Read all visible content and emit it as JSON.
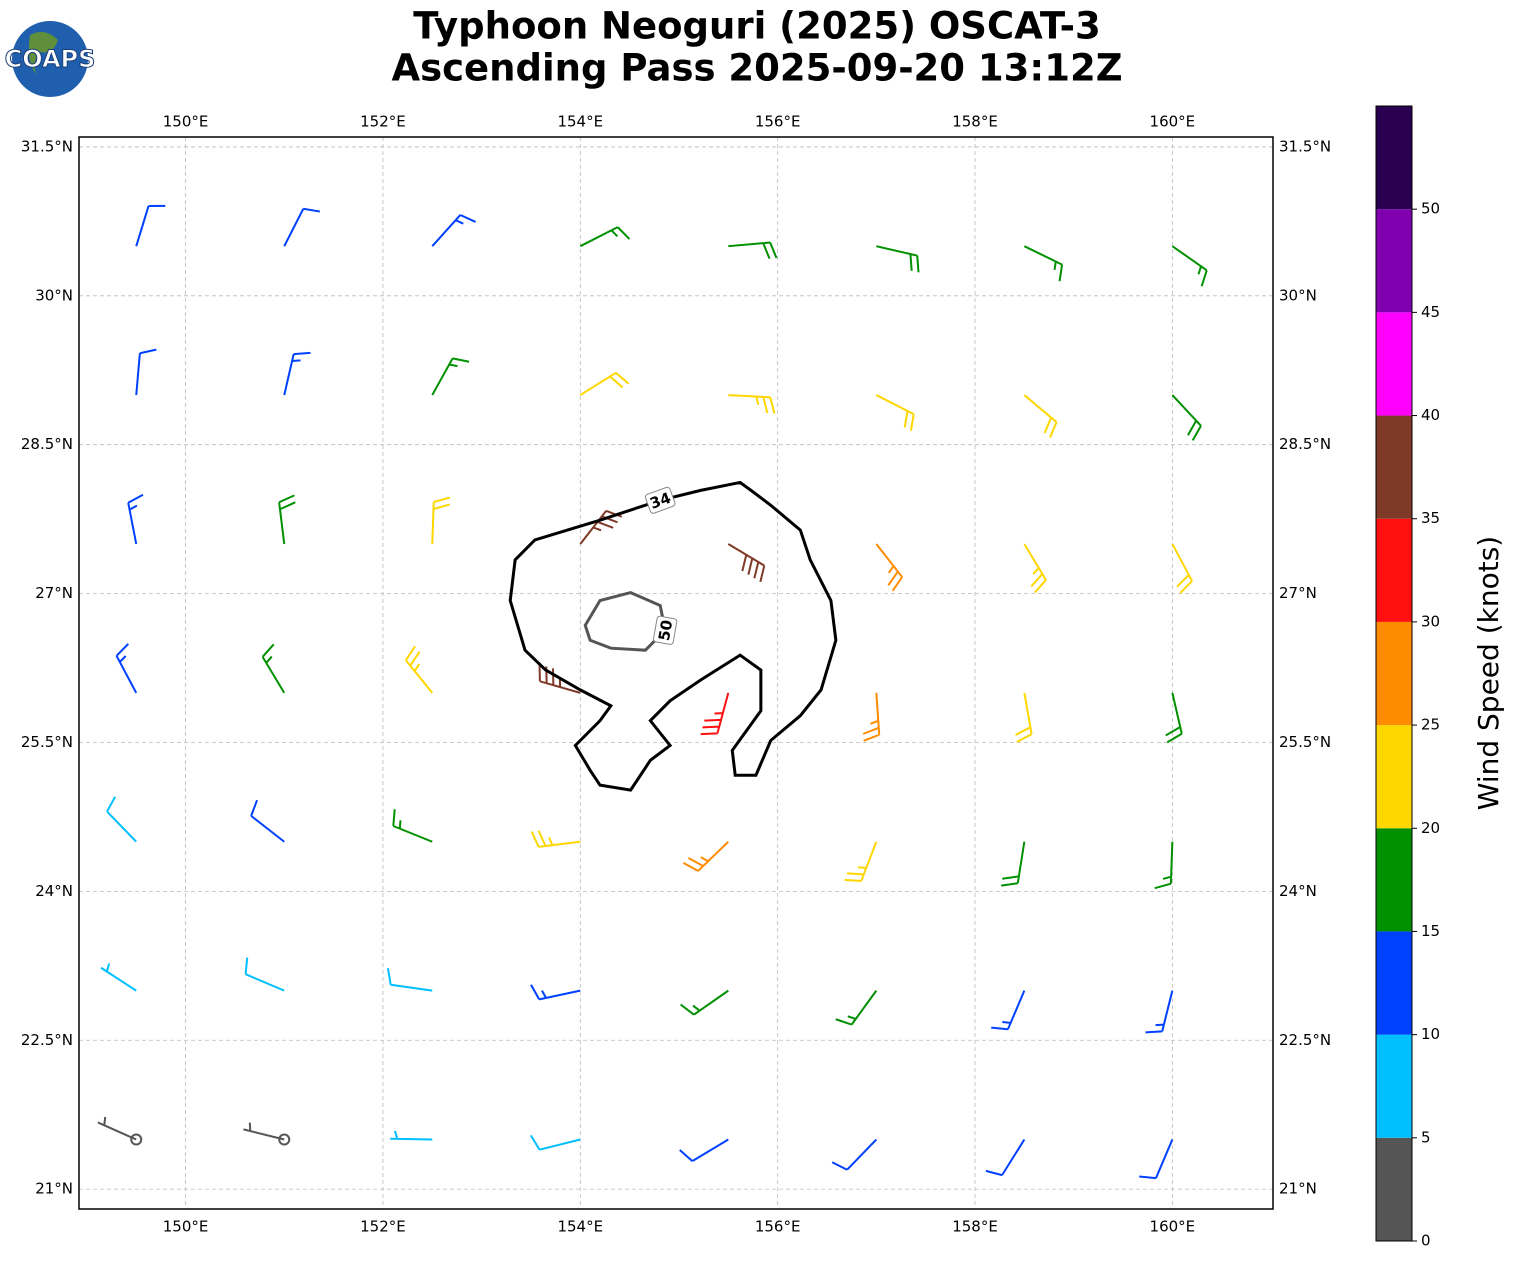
{
  "chart_data": {
    "type": "barbs",
    "logo": "COAPS",
    "title": "Typhoon Neoguri (2025) OSCAT-3",
    "subtitle": "Ascending Pass 2025-09-20 13:12Z",
    "xlim": [
      148.92,
      161.02
    ],
    "ylim": [
      20.8,
      31.6
    ],
    "xticks": [
      {
        "value": 150,
        "label": "150°E"
      },
      {
        "value": 152,
        "label": "152°E"
      },
      {
        "value": 154,
        "label": "154°E"
      },
      {
        "value": 156,
        "label": "156°E"
      },
      {
        "value": 158,
        "label": "158°E"
      },
      {
        "value": 160,
        "label": "160°E"
      }
    ],
    "yticks": [
      {
        "value": 21,
        "label": "21°N"
      },
      {
        "value": 22.5,
        "label": "22.5°N"
      },
      {
        "value": 24,
        "label": "24°N"
      },
      {
        "value": 25.5,
        "label": "25.5°N"
      },
      {
        "value": 27,
        "label": "27°N"
      },
      {
        "value": 28.5,
        "label": "28.5°N"
      },
      {
        "value": 30,
        "label": "30°N"
      },
      {
        "value": 31.5,
        "label": "31.5°N"
      }
    ],
    "grid": true,
    "lons": [
      149.5,
      151,
      152.5,
      154,
      155.5,
      157,
      158.5,
      160
    ],
    "lats": [
      30.5,
      29,
      27.5,
      26,
      24.5,
      23,
      21.5
    ],
    "speeds": [
      [
        12,
        12,
        13,
        17,
        18,
        19,
        17,
        16
      ],
      [
        12,
        14,
        17,
        22,
        24,
        22,
        21,
        19
      ],
      [
        14,
        18,
        22,
        37,
        38,
        27,
        23,
        20
      ],
      [
        13,
        17,
        24,
        36,
        33,
        27,
        22,
        19
      ],
      [
        9,
        12,
        17,
        24,
        27,
        24,
        19,
        17
      ],
      [
        7,
        8,
        9,
        13,
        17,
        17,
        14,
        13
      ],
      [
        3,
        4,
        7,
        9,
        11,
        12,
        12,
        11
      ]
    ],
    "directions": [
      [
        17,
        27,
        42,
        63,
        85,
        103,
        116,
        125
      ],
      [
        5,
        13,
        29,
        58,
        93,
        117,
        130,
        137
      ],
      [
        349,
        353,
        2,
        38,
        121,
        142,
        149,
        152
      ],
      [
        332,
        329,
        321,
        286,
        195,
        176,
        170,
        167
      ],
      [
        316,
        308,
        292,
        263,
        226,
        201,
        189,
        182
      ],
      [
        303,
        293,
        278,
        258,
        235,
        216,
        203,
        194
      ],
      [
        294,
        284,
        271,
        256,
        239,
        224,
        212,
        203
      ]
    ],
    "contours": [
      {
        "level": "34",
        "lon": [
          153.34,
          153.54,
          154.2,
          154.81,
          155.22,
          155.62,
          155.73,
          155.93,
          156.23,
          156.33,
          156.54,
          156.59,
          156.44,
          156.23,
          155.93,
          155.78,
          155.57,
          155.54,
          155.83,
          155.83,
          155.62,
          155.22,
          154.91,
          154.71,
          154.91,
          154.71,
          154.51,
          154.2,
          154.1,
          153.95,
          154.2,
          154.31,
          154.0,
          153.65,
          153.44,
          153.29
        ],
        "lat": [
          27.34,
          27.54,
          27.74,
          27.94,
          28.04,
          28.12,
          28.04,
          27.89,
          27.64,
          27.34,
          26.93,
          26.53,
          26.03,
          25.77,
          25.52,
          25.17,
          25.17,
          25.42,
          25.82,
          26.23,
          26.38,
          26.13,
          25.92,
          25.72,
          25.47,
          25.32,
          25.02,
          25.07,
          25.22,
          25.47,
          25.72,
          25.87,
          26.03,
          26.23,
          26.43,
          26.93
        ]
      },
      {
        "level": "50",
        "lon": [
          154.05,
          154.2,
          154.51,
          154.81,
          154.86,
          154.66,
          154.31,
          154.1
        ],
        "lat": [
          26.68,
          26.93,
          27.01,
          26.88,
          26.63,
          26.43,
          26.45,
          26.53
        ]
      }
    ],
    "colorbar": {
      "label": "Wind Speed (knots)",
      "bounds": [
        0,
        5,
        10,
        15,
        20,
        25,
        30,
        35,
        40,
        45,
        50,
        55
      ],
      "colors": [
        "#555555",
        "#00bfff",
        "#0040ff",
        "#009000",
        "#ffd700",
        "#ff8c00",
        "#ff1010",
        "#7f3a27",
        "#ff00ff",
        "#8000b0",
        "#2a0050"
      ],
      "ticks": [
        0,
        5,
        10,
        15,
        20,
        25,
        30,
        35,
        40,
        45,
        50
      ]
    }
  }
}
